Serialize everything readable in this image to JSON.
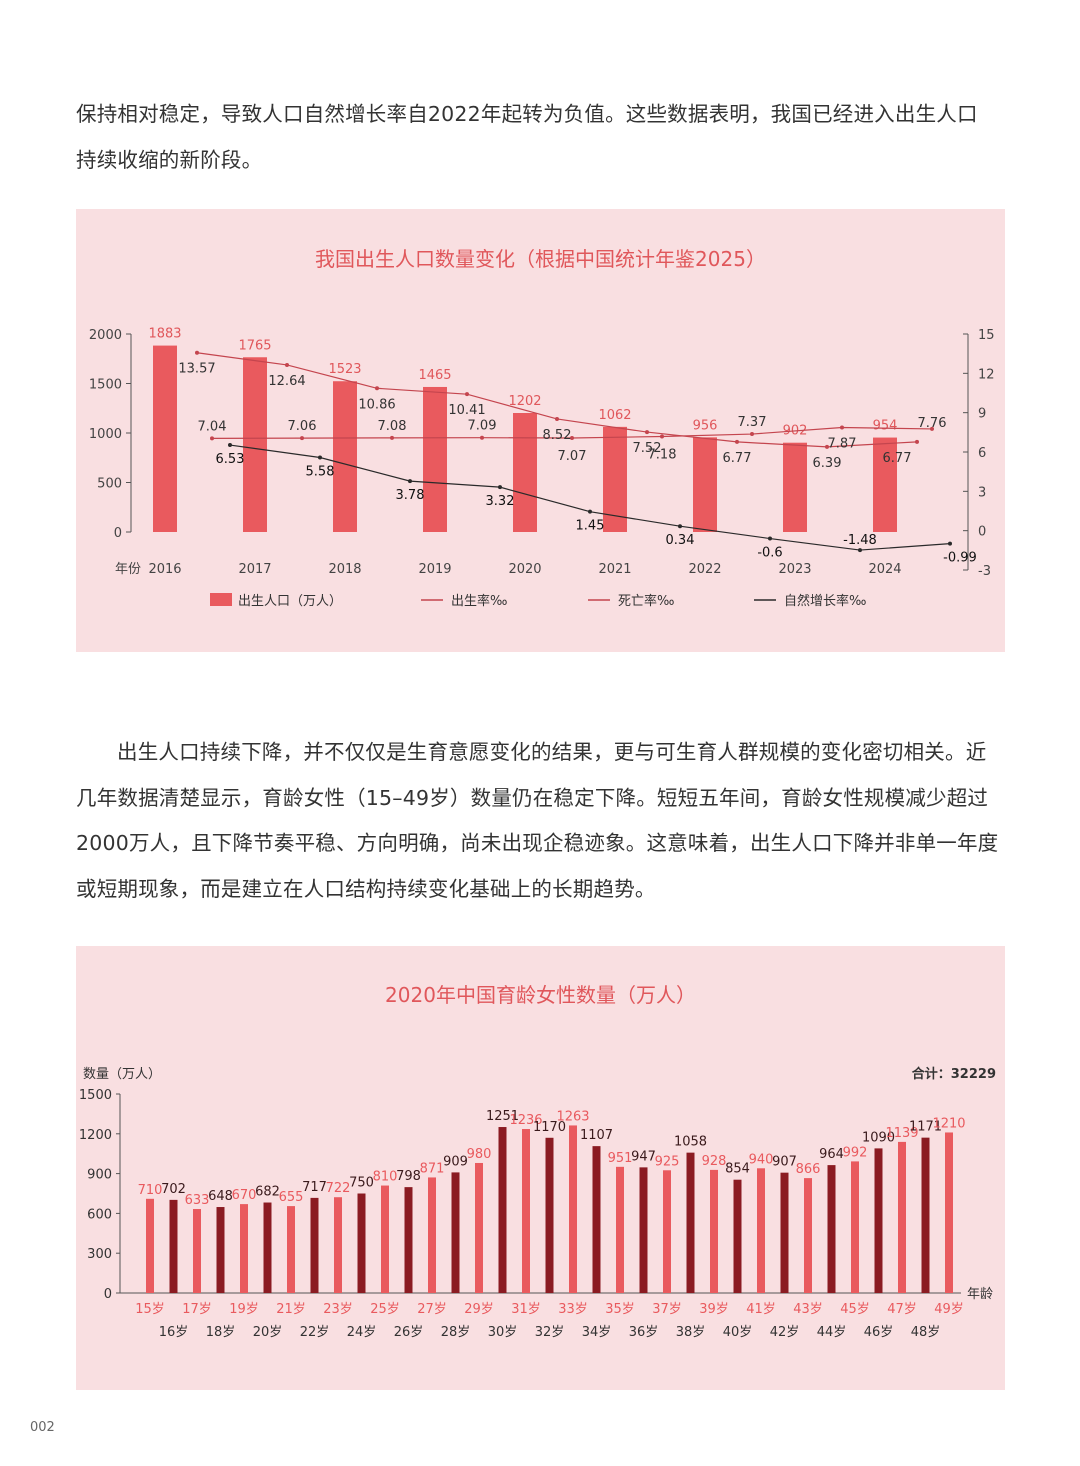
{
  "para1": {
    "line1": "保持相对稳定，导致人口自然增长率自2022年起转为负值。这些数据表明，我国已经进入出生人口",
    "line2": "持续收缩的新阶段。"
  },
  "para2": {
    "line1": "出生人口持续下降，并不仅仅是生育意愿变化的结果，更与可生育人群规模的变化密切相关。近",
    "line2": "几年数据清楚显示，育龄女性（15–49岁）数量仍在稳定下降。短短五年间，育龄女性规模减少超过",
    "line3": "2000万人，且下降节奏平稳、方向明确，尚未出现企稳迹象。这意味着，出生人口下降并非单一年度",
    "line4": "或短期现象，而是建立在人口结构持续变化基础上的长期趋势。"
  },
  "page_number": "002",
  "colors": {
    "panel_bg": "#f9dfe1",
    "title": "#e0575b",
    "bar": "#e95a5e",
    "bar_dark": "#8b1b22",
    "births_label": "#e0575b",
    "rate_line": "#c4454e",
    "natural_line": "#2a2a2a",
    "axis": "#555555"
  },
  "chart_data": [
    {
      "type": "bar",
      "title": "我国出生人口数量变化（根据中国统计年鉴2025）",
      "xlabel": "年份",
      "categories": [
        "2016",
        "2017",
        "2018",
        "2019",
        "2020",
        "2021",
        "2022",
        "2023",
        "2024"
      ],
      "ylim": [
        0,
        2000
      ],
      "yticks": [
        "0",
        "500",
        "1000",
        "1500",
        "2000"
      ],
      "y2lim": [
        -3,
        15
      ],
      "y2ticks": [
        "-3",
        "0",
        "3",
        "6",
        "9",
        "12",
        "15"
      ],
      "series": [
        {
          "name": "出生人口（万人）",
          "type": "bar",
          "axis": "left",
          "values": [
            1883,
            1765,
            1523,
            1465,
            1202,
            1062,
            956,
            902,
            954
          ]
        },
        {
          "name": "出生率‰",
          "type": "line",
          "axis": "right",
          "values": [
            13.57,
            12.64,
            10.86,
            10.41,
            8.52,
            7.52,
            6.77,
            6.39,
            6.77
          ]
        },
        {
          "name": "死亡率‰",
          "type": "line",
          "axis": "right",
          "values": [
            7.04,
            7.06,
            7.08,
            7.09,
            7.07,
            7.18,
            7.37,
            7.87,
            7.76
          ]
        },
        {
          "name": "自然增长率‰",
          "type": "line",
          "axis": "right",
          "values": [
            6.53,
            5.58,
            3.78,
            3.32,
            1.45,
            0.34,
            -0.6,
            -1.48,
            -0.99
          ]
        }
      ],
      "legend": [
        "出生人口（万人）",
        "出生率‰",
        "死亡率‰",
        "自然增长率‰"
      ]
    },
    {
      "type": "bar",
      "title": "2020年中国育龄女性数量（万人）",
      "ylabel": "数量（万人）",
      "xlabel": "年龄",
      "total_label": "合计：32229",
      "ylim": [
        0,
        1500
      ],
      "yticks": [
        "0",
        "300",
        "600",
        "900",
        "1200",
        "1500"
      ],
      "categories": [
        "15岁",
        "16岁",
        "17岁",
        "18岁",
        "19岁",
        "20岁",
        "21岁",
        "22岁",
        "23岁",
        "24岁",
        "25岁",
        "26岁",
        "27岁",
        "28岁",
        "29岁",
        "30岁",
        "31岁",
        "32岁",
        "33岁",
        "34岁",
        "35岁",
        "36岁",
        "37岁",
        "38岁",
        "39岁",
        "40岁",
        "41岁",
        "42岁",
        "43岁",
        "44岁",
        "45岁",
        "46岁",
        "47岁",
        "48岁",
        "49岁"
      ],
      "values": [
        710,
        702,
        633,
        648,
        670,
        682,
        655,
        717,
        722,
        750,
        810,
        798,
        871,
        909,
        980,
        1251,
        1236,
        1170,
        1263,
        1107,
        951,
        947,
        925,
        1058,
        928,
        854,
        940,
        907,
        866,
        964,
        992,
        1090,
        1139,
        1171,
        1210
      ]
    }
  ]
}
